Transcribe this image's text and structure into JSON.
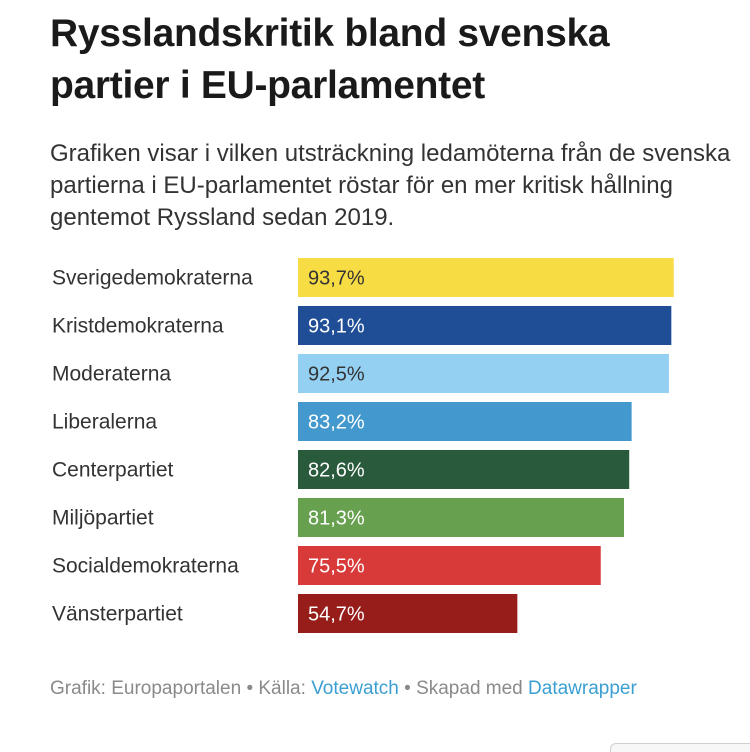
{
  "title": "Rysslandskritik bland svenska partier i EU-parlamentet",
  "description": "Grafiken visar i vilken utsträckning ledamöterna från de svenska partierna i EU-parlamentet röstar för en mer kritisk hållning gentemot Ryssland sedan 2019.",
  "footer": {
    "prefix": "Grafik: Europaportalen • Källa: ",
    "source_link": "Votewatch",
    "middle": " • Skapad med ",
    "tool_link": "Datawrapper"
  },
  "chart_data": {
    "type": "bar",
    "orientation": "horizontal",
    "categories": [
      "Sverigedemokraterna",
      "Kristdemokraterna",
      "Moderaterna",
      "Liberalerna",
      "Centerpartiet",
      "Miljöpartiet",
      "Socialdemokraterna",
      "Vänsterpartiet"
    ],
    "values": [
      93.7,
      93.1,
      92.5,
      83.2,
      82.6,
      81.3,
      75.5,
      54.7
    ],
    "value_labels": [
      "93,7%",
      "93,1%",
      "92,5%",
      "83,2%",
      "82,6%",
      "81,3%",
      "75,5%",
      "54,7%"
    ],
    "colors": [
      "#f7dc44",
      "#1f4e96",
      "#94d0f2",
      "#4399cd",
      "#2a5a3c",
      "#67a150",
      "#d83a3a",
      "#961d19"
    ],
    "label_colors": [
      "#333333",
      "#ffffff",
      "#333333",
      "#ffffff",
      "#ffffff",
      "#ffffff",
      "#ffffff",
      "#ffffff"
    ],
    "xlim": [
      0,
      100
    ],
    "grid": false,
    "legend": "none"
  }
}
